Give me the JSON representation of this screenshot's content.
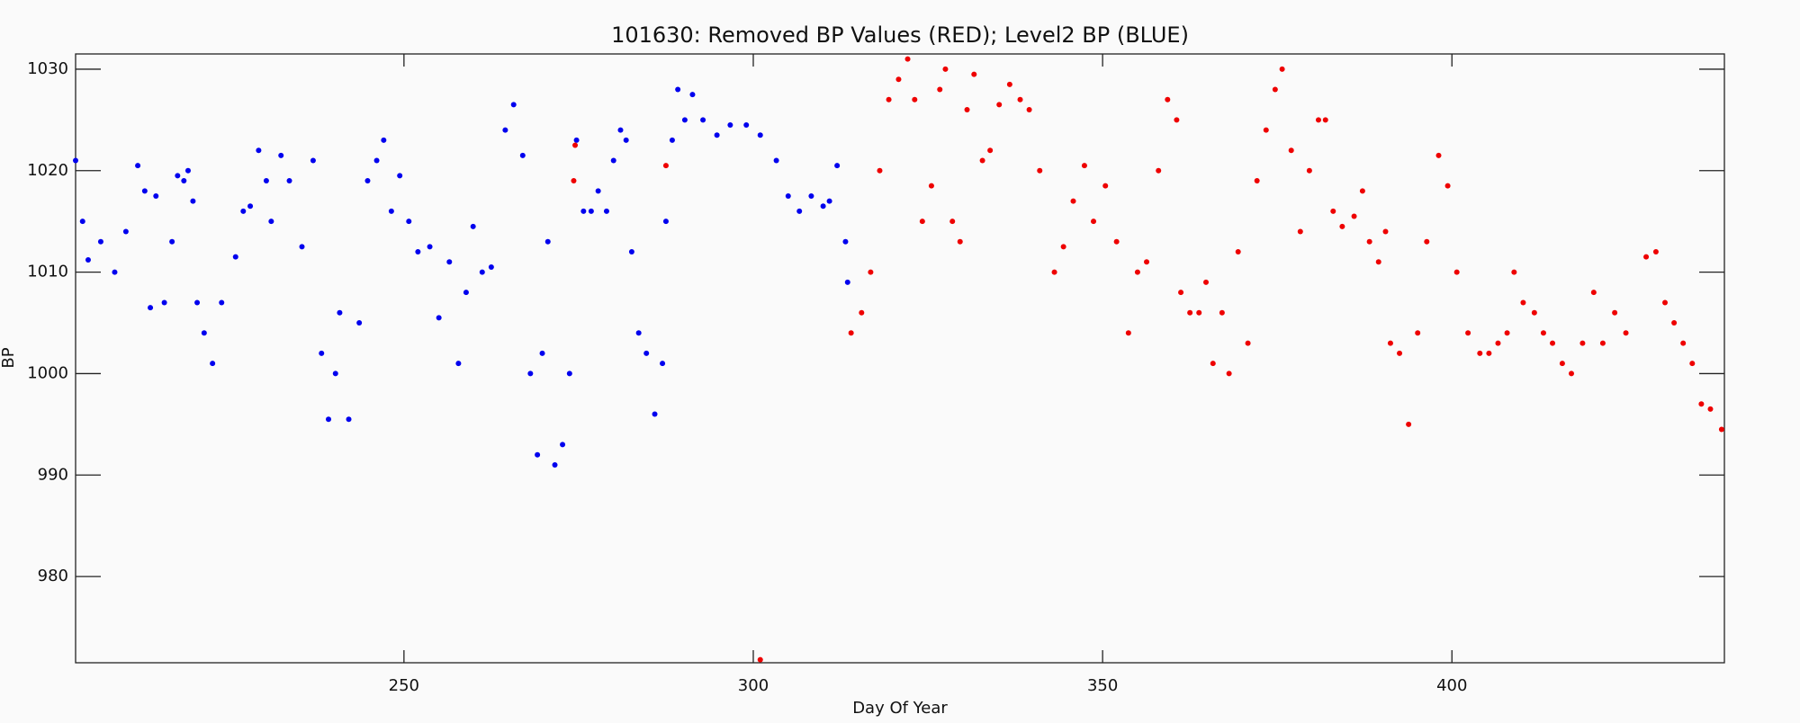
{
  "chart_data": {
    "type": "scatter",
    "title": "101630: Removed BP Values (RED); Level2 BP (BLUE)",
    "x_label": "Day Of Year",
    "y_label": "BP",
    "xlim": [
      203,
      439
    ],
    "ylim": [
      971.5,
      1031.5
    ],
    "xticks": [
      250,
      300,
      350,
      400
    ],
    "yticks": [
      980,
      990,
      1000,
      1010,
      1020,
      1030
    ],
    "series": [
      {
        "color": "#0000ee",
        "x": [
          203,
          204,
          204.8,
          206.6,
          208.6,
          210.2,
          211.9,
          212.9,
          213.7,
          214.5,
          215.7,
          216.8,
          217.6,
          218.5,
          219.1,
          219.8,
          220.4,
          221.4,
          222.6,
          223.9,
          225.9,
          227,
          228,
          229.2,
          230.3,
          231,
          232.4,
          233.6,
          235.4,
          237,
          238.2,
          239.2,
          240.2,
          240.8,
          242.1,
          243.6,
          244.8,
          246.1,
          247.1,
          248.2,
          249.4,
          250.7,
          252,
          253.7,
          255,
          256.5,
          257.8,
          258.9,
          259.9,
          261.2,
          262.5,
          264.5,
          265.7,
          267,
          268.1,
          269.1,
          269.8,
          270.6,
          271.6,
          272.7,
          273.7,
          274.7,
          275.7,
          276.8,
          277.8,
          279,
          280,
          281,
          281.8,
          282.6,
          283.6,
          284.7,
          285.9,
          287,
          287.5,
          288.4,
          289.2,
          290.2,
          291.3,
          292.8,
          294.8,
          296.7,
          299,
          301,
          303.3,
          305,
          306.6,
          308.3,
          310,
          310.9,
          312,
          313.2,
          313.5
        ],
        "values": [
          1021,
          1015,
          1011.2,
          1013,
          1010,
          1014,
          1020.5,
          1018,
          1006.5,
          1017.5,
          1007,
          1013,
          1019.5,
          1019,
          1020,
          1017,
          1007,
          1004,
          1001,
          1007,
          1011.5,
          1016,
          1016.5,
          1022,
          1019,
          1015,
          1021.5,
          1019,
          1012.5,
          1021,
          1002,
          995.5,
          1000,
          1006,
          995.5,
          1005,
          1019,
          1021,
          1023,
          1016,
          1019.5,
          1015,
          1012,
          1012.5,
          1005.5,
          1011,
          1001,
          1008,
          1014.5,
          1010,
          1010.5,
          1024,
          1026.5,
          1021.5,
          1000,
          992,
          1002,
          1013,
          991,
          993,
          1000,
          1023,
          1016,
          1016,
          1018,
          1016,
          1021,
          1024,
          1023,
          1012,
          1004,
          1002,
          996,
          1001,
          1015,
          1023,
          1028,
          1025,
          1027.5,
          1025,
          1023.5,
          1024.5,
          1024.5,
          1023.5,
          1021,
          1017.5,
          1016,
          1017.5,
          1016.5,
          1017,
          1020.5,
          1013,
          1009
        ]
      },
      {
        "color": "#ee0000",
        "x": [
          274.3,
          274.5,
          287.5,
          301,
          314,
          315.5,
          316.8,
          318.1,
          319.4,
          320.8,
          322.1,
          323.1,
          324.2,
          325.5,
          326.7,
          327.5,
          328.5,
          329.6,
          330.6,
          331.6,
          332.8,
          333.9,
          335.2,
          336.7,
          338.2,
          339.5,
          341,
          343.1,
          344.4,
          345.8,
          347.4,
          348.7,
          350.4,
          352,
          353.7,
          355,
          356.3,
          358,
          359.3,
          360.6,
          361.2,
          362.5,
          363.8,
          364.8,
          365.8,
          367.1,
          368.1,
          369.4,
          370.8,
          372.1,
          373.4,
          374.7,
          375.7,
          377,
          378.3,
          379.6,
          380.9,
          381.9,
          383,
          384.3,
          386,
          387.2,
          388.2,
          389.5,
          390.5,
          391.2,
          392.5,
          393.8,
          395.1,
          396.4,
          398.1,
          399.4,
          400.7,
          402.3,
          404,
          405.3,
          406.6,
          407.9,
          408.9,
          410.2,
          411.8,
          413.1,
          414.4,
          415.8,
          417.1,
          418.7,
          420.3,
          421.6,
          423.3,
          424.9,
          427.8,
          429.2,
          430.5,
          431.8,
          433.1,
          434.4,
          435.7,
          437,
          438.6
        ],
        "values": [
          1019,
          1022.5,
          1020.5,
          971.8,
          1004,
          1006,
          1010,
          1020,
          1027,
          1029,
          1031,
          1027,
          1015,
          1018.5,
          1028,
          1030,
          1015,
          1013,
          1026,
          1029.5,
          1021,
          1022,
          1026.5,
          1028.5,
          1027,
          1026,
          1020,
          1010,
          1012.5,
          1017,
          1020.5,
          1015,
          1018.5,
          1013,
          1004,
          1010,
          1011,
          1020,
          1027,
          1025,
          1008,
          1006,
          1006,
          1009,
          1001,
          1006,
          1000,
          1012,
          1003,
          1019,
          1024,
          1028,
          1030,
          1022,
          1014,
          1020,
          1025,
          1025,
          1016,
          1014.5,
          1015.5,
          1018,
          1013,
          1011,
          1014,
          1003,
          1002,
          995,
          1004,
          1013,
          1021.5,
          1018.5,
          1010,
          1004,
          1002,
          1002,
          1003,
          1004,
          1010,
          1007,
          1006,
          1004,
          1003,
          1001,
          1000,
          1003,
          1008,
          1003,
          1006,
          1004,
          1011.5,
          1012,
          1007,
          1005,
          1003,
          1001,
          997,
          996.5,
          994.5
        ]
      }
    ]
  }
}
